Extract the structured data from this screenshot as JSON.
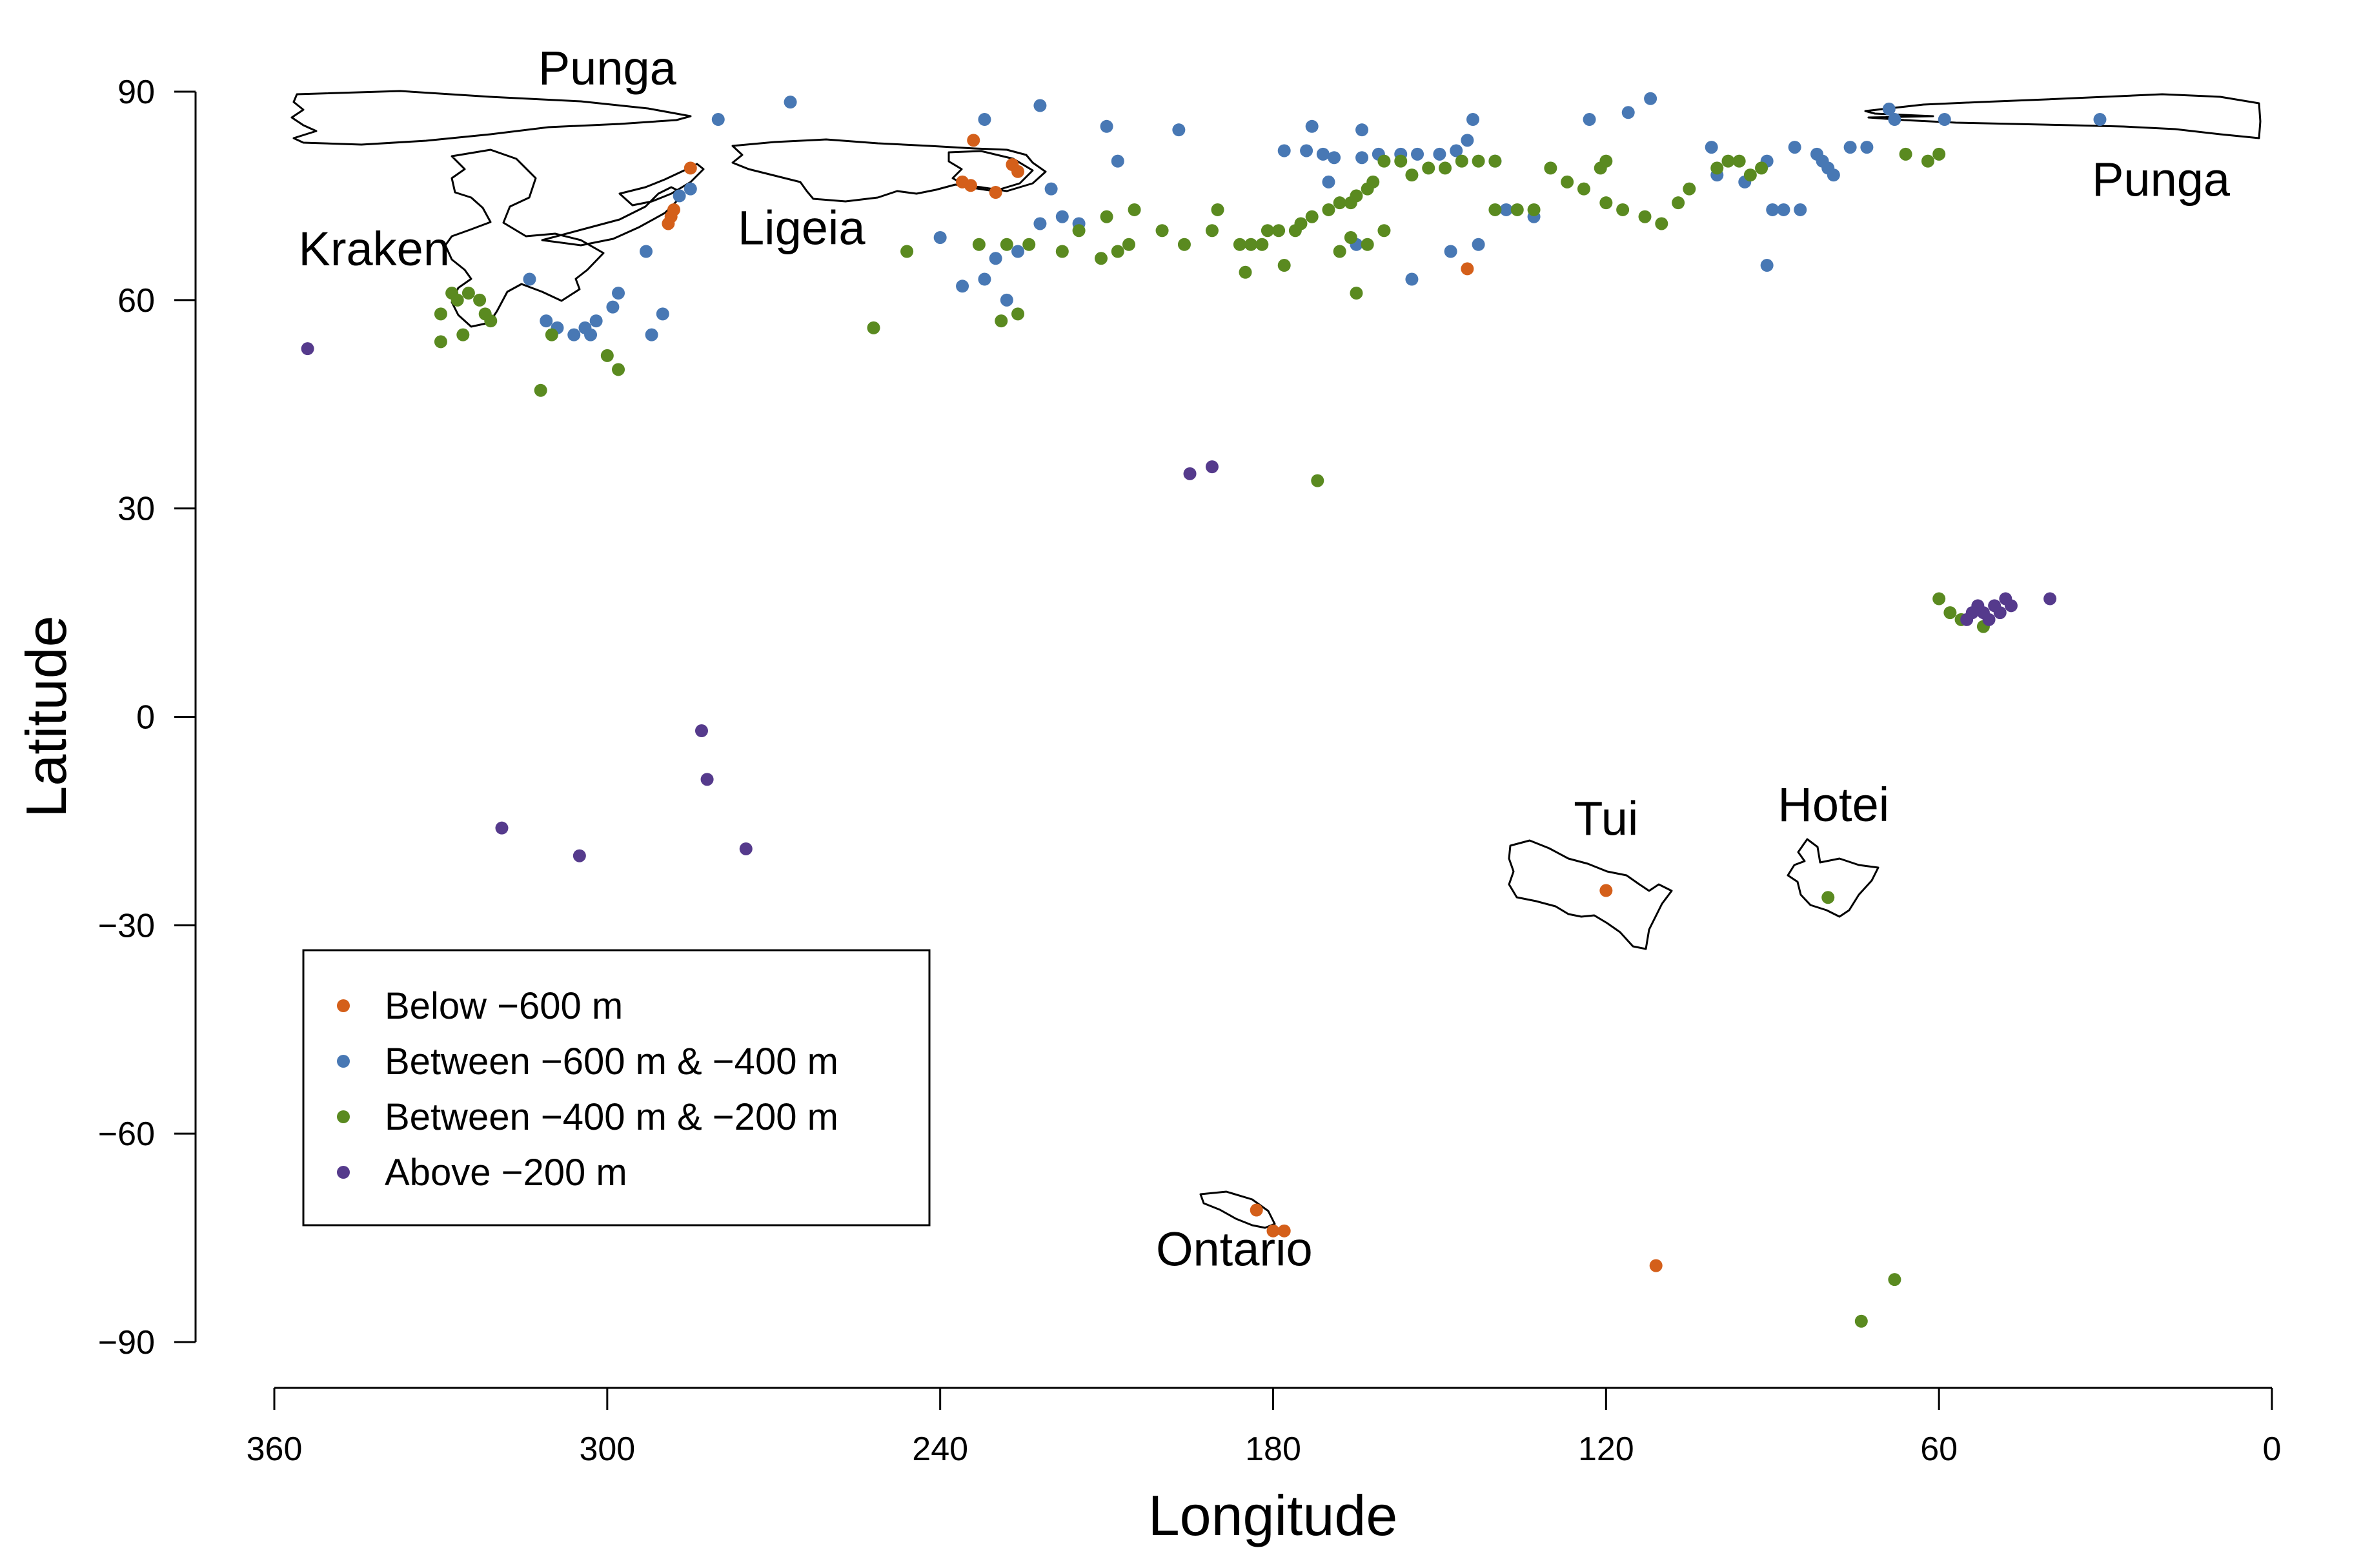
{
  "chart_data": {
    "type": "scatter",
    "title": "",
    "xlabel": "Longitude",
    "ylabel": "Latitude",
    "xlim": [
      360,
      0
    ],
    "ylim": [
      -90,
      90
    ],
    "x_ticks": [
      "360",
      "300",
      "240",
      "180",
      "120",
      "60",
      "0"
    ],
    "y_ticks": [
      "90",
      "60",
      "30",
      "0",
      "−30",
      "−60",
      "−90"
    ],
    "grid": false,
    "legend_position": "bottom-left",
    "region_labels": [
      {
        "name": "Punga",
        "lon": 300,
        "lat": 91
      },
      {
        "name": "Punga",
        "lon": 20,
        "lat": 75
      },
      {
        "name": "Kraken",
        "lon": 342,
        "lat": 65
      },
      {
        "name": "Ligeia",
        "lon": 265,
        "lat": 68
      },
      {
        "name": "Tui",
        "lon": 120,
        "lat": -17
      },
      {
        "name": "Hotei",
        "lon": 79,
        "lat": -15
      },
      {
        "name": "Ontario",
        "lon": 187,
        "lat": -79
      }
    ],
    "series": [
      {
        "name": "Below −600 m",
        "color": "#d45f1a",
        "points": [
          [
            234,
            83
          ],
          [
            236,
            77
          ],
          [
            234.5,
            76.5
          ],
          [
            230,
            75.5
          ],
          [
            227,
            79.5
          ],
          [
            226,
            78.5
          ],
          [
            285,
            79
          ],
          [
            288,
            73
          ],
          [
            289,
            71
          ],
          [
            288.5,
            72
          ],
          [
            145,
            64.5
          ],
          [
            120,
            -25
          ],
          [
            183,
            -71
          ],
          [
            180,
            -74
          ],
          [
            178,
            -74
          ],
          [
            111,
            -79
          ]
        ]
      },
      {
        "name": "Between −600 m & −400 m",
        "color": "#4878b4",
        "points": [
          [
            267,
            88.5
          ],
          [
            232,
            86
          ],
          [
            222,
            88
          ],
          [
            210,
            85
          ],
          [
            197,
            84.5
          ],
          [
            173,
            85
          ],
          [
            164,
            84.5
          ],
          [
            144,
            86
          ],
          [
            123,
            86
          ],
          [
            116,
            87
          ],
          [
            112,
            89
          ],
          [
            69,
            87.5
          ],
          [
            68,
            86
          ],
          [
            59,
            86
          ],
          [
            31,
            86
          ],
          [
            280,
            86
          ],
          [
            178,
            81.5
          ],
          [
            174,
            81.5
          ],
          [
            171,
            81
          ],
          [
            169,
            80.5
          ],
          [
            164,
            80.5
          ],
          [
            161,
            81
          ],
          [
            157,
            81
          ],
          [
            154,
            81
          ],
          [
            150,
            81
          ],
          [
            147,
            81.5
          ],
          [
            145,
            83
          ],
          [
            140,
            80
          ],
          [
            101,
            82
          ],
          [
            100,
            78
          ],
          [
            95,
            77
          ],
          [
            91,
            80
          ],
          [
            86,
            82
          ],
          [
            82,
            81
          ],
          [
            81,
            80
          ],
          [
            80,
            79
          ],
          [
            79,
            78
          ],
          [
            76,
            82
          ],
          [
            73,
            82
          ],
          [
            208,
            80
          ],
          [
            220,
            76
          ],
          [
            170,
            77
          ],
          [
            287,
            75
          ],
          [
            285,
            76
          ],
          [
            222,
            71
          ],
          [
            218,
            72
          ],
          [
            215,
            71
          ],
          [
            226,
            67
          ],
          [
            230,
            66
          ],
          [
            232,
            63
          ],
          [
            240,
            69
          ],
          [
            236,
            62
          ],
          [
            228,
            60
          ],
          [
            165,
            68
          ],
          [
            155,
            63
          ],
          [
            148,
            67
          ],
          [
            143,
            68
          ],
          [
            138,
            73
          ],
          [
            133,
            72
          ],
          [
            90,
            73
          ],
          [
            88,
            73
          ],
          [
            85,
            73
          ],
          [
            91,
            65
          ],
          [
            314,
            63
          ],
          [
            311,
            57
          ],
          [
            302,
            57
          ],
          [
            298,
            61
          ],
          [
            299,
            59
          ],
          [
            304,
            56
          ],
          [
            306,
            55
          ],
          [
            309,
            56
          ],
          [
            293,
            67
          ],
          [
            292,
            55
          ],
          [
            290,
            58
          ],
          [
            303,
            55
          ]
        ]
      },
      {
        "name": "Between −400 m & −200 m",
        "color": "#5a8a20",
        "points": [
          [
            246,
            67
          ],
          [
            233,
            68
          ],
          [
            228,
            68
          ],
          [
            224,
            68
          ],
          [
            218,
            67
          ],
          [
            215,
            70
          ],
          [
            211,
            66
          ],
          [
            208,
            67
          ],
          [
            206,
            68
          ],
          [
            196,
            68
          ],
          [
            191,
            70
          ],
          [
            186,
            68
          ],
          [
            184,
            68
          ],
          [
            182,
            68
          ],
          [
            181,
            70
          ],
          [
            179,
            70
          ],
          [
            176,
            70
          ],
          [
            173,
            72
          ],
          [
            170,
            73
          ],
          [
            168,
            74
          ],
          [
            166,
            74
          ],
          [
            165,
            75
          ],
          [
            163,
            76
          ],
          [
            162,
            77
          ],
          [
            160,
            80
          ],
          [
            157,
            80
          ],
          [
            155,
            78
          ],
          [
            152,
            79
          ],
          [
            149,
            79
          ],
          [
            146,
            80
          ],
          [
            143,
            80
          ],
          [
            140,
            80
          ],
          [
            136,
            73
          ],
          [
            133,
            73
          ],
          [
            130,
            79
          ],
          [
            127,
            77
          ],
          [
            124,
            76
          ],
          [
            121,
            79
          ],
          [
            120,
            80
          ],
          [
            117,
            73
          ],
          [
            113,
            72
          ],
          [
            110,
            71
          ],
          [
            107,
            74
          ],
          [
            105,
            76
          ],
          [
            100,
            79
          ],
          [
            98,
            80
          ],
          [
            96,
            80
          ],
          [
            94,
            78
          ],
          [
            92,
            79
          ],
          [
            66,
            81
          ],
          [
            62,
            80
          ],
          [
            60,
            81
          ],
          [
            200,
            70
          ],
          [
            205,
            73
          ],
          [
            210,
            72
          ],
          [
            190,
            73
          ],
          [
            185,
            64
          ],
          [
            178,
            65
          ],
          [
            175,
            71
          ],
          [
            168,
            67
          ],
          [
            166,
            69
          ],
          [
            163,
            68
          ],
          [
            165,
            61
          ],
          [
            160,
            70
          ],
          [
            140,
            73
          ],
          [
            120,
            74
          ],
          [
            252,
            56
          ],
          [
            229,
            57
          ],
          [
            226,
            58
          ],
          [
            172,
            34
          ],
          [
            328,
            61
          ],
          [
            327,
            60
          ],
          [
            325,
            61
          ],
          [
            323,
            60
          ],
          [
            322,
            58
          ],
          [
            330,
            58
          ],
          [
            330,
            54
          ],
          [
            326,
            55
          ],
          [
            321,
            57
          ],
          [
            310,
            55
          ],
          [
            312,
            47
          ],
          [
            300,
            52
          ],
          [
            298,
            50
          ],
          [
            60,
            17
          ],
          [
            58,
            15
          ],
          [
            56,
            14
          ],
          [
            52,
            13
          ],
          [
            80,
            -26
          ],
          [
            74,
            -87
          ],
          [
            68,
            -81
          ]
        ]
      },
      {
        "name": "Above −200 m",
        "color": "#553a8c",
        "points": [
          [
            354,
            53
          ],
          [
            195,
            35
          ],
          [
            191,
            36
          ],
          [
            283,
            -2
          ],
          [
            282,
            -9
          ],
          [
            275,
            -19
          ],
          [
            319,
            -16
          ],
          [
            305,
            -20
          ],
          [
            52,
            15
          ],
          [
            50,
            16
          ],
          [
            48,
            17
          ],
          [
            47,
            16
          ],
          [
            53,
            16
          ],
          [
            54,
            15
          ],
          [
            55,
            14
          ],
          [
            51,
            14
          ],
          [
            49,
            15
          ],
          [
            40,
            17
          ]
        ]
      }
    ]
  }
}
